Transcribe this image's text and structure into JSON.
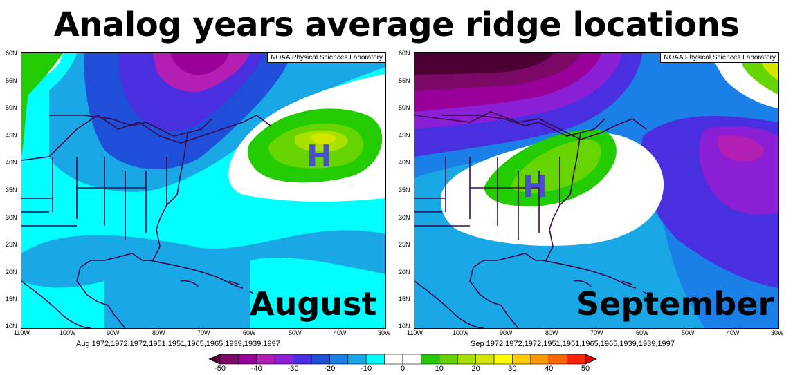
{
  "title": "Analog years average ridge locations",
  "credit": "NOAA Physical Sciences Laboratory",
  "lat_labels": [
    "60N",
    "55N",
    "50N",
    "45N",
    "40N",
    "35N",
    "30N",
    "25N",
    "20N",
    "15N",
    "10N"
  ],
  "lon_labels": [
    "110W",
    "100W",
    "90W",
    "80W",
    "70W",
    "60W",
    "50W",
    "40W",
    "30W"
  ],
  "panels": [
    {
      "month": "August",
      "marker": "H",
      "caption": "Aug  1972,1972,1972,1951,1951,1965,1965,1939,1939,1997"
    },
    {
      "month": "September",
      "marker": "H",
      "caption": "Sep  1972,1972,1972,1951,1951,1965,1965,1939,1939,1997"
    }
  ],
  "colorbar": {
    "labels": [
      "-50",
      "-40",
      "-30",
      "-20",
      "-10",
      "0",
      "10",
      "20",
      "30",
      "40",
      "50"
    ],
    "colors": [
      "#4d0033",
      "#7a0a66",
      "#990099",
      "#b31fb3",
      "#8a1fd6",
      "#4a2fe0",
      "#1f4fd9",
      "#1a7fe6",
      "#1aa7e6",
      "#00ffff",
      "#ffffff",
      "#ffffff",
      "#22cc00",
      "#66d400",
      "#a8e000",
      "#d4e600",
      "#ffff00",
      "#ffcc00",
      "#ff9900",
      "#ff6600",
      "#ff2200",
      "#e60000"
    ]
  }
}
